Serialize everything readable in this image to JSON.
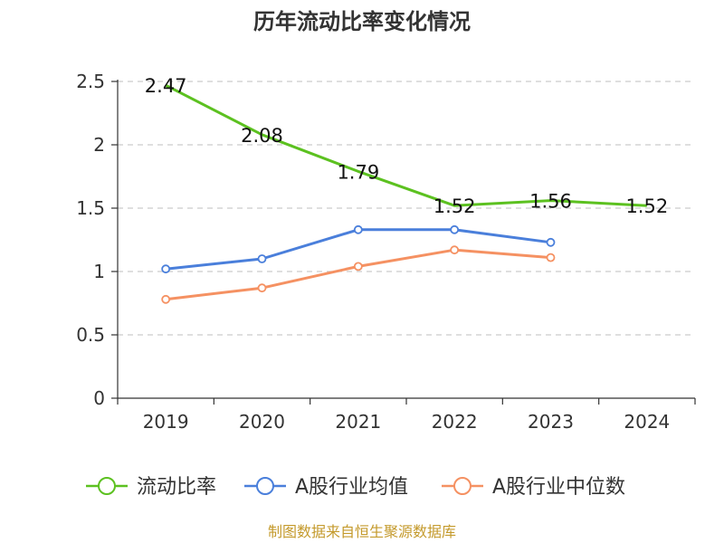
{
  "chart_data": {
    "type": "line",
    "title": "历年流动比率变化情况",
    "categories": [
      "2019",
      "2020",
      "2021",
      "2022",
      "2023",
      "2024"
    ],
    "ylim": [
      0,
      2.5
    ],
    "yticks": [
      "0",
      "0.5",
      "1",
      "1.5",
      "2",
      "2.5"
    ],
    "grid": true,
    "legend_position": "bottom",
    "series": [
      {
        "name": "流动比率",
        "color": "#5cc120",
        "values": [
          2.47,
          2.08,
          1.79,
          1.52,
          1.56,
          1.52
        ],
        "labels": [
          "2.47",
          "2.08",
          "1.79",
          "1.52",
          "1.56",
          "1.52"
        ],
        "show_markers": false
      },
      {
        "name": "A股行业均值",
        "color": "#4a7fdb",
        "values": [
          1.02,
          1.1,
          1.33,
          1.33,
          1.23,
          null
        ],
        "show_markers": true
      },
      {
        "name": "A股行业中位数",
        "color": "#f59162",
        "values": [
          0.78,
          0.87,
          1.04,
          1.17,
          1.11,
          null
        ],
        "show_markers": true
      }
    ]
  },
  "footer": {
    "source": "制图数据来自恒生聚源数据库"
  }
}
